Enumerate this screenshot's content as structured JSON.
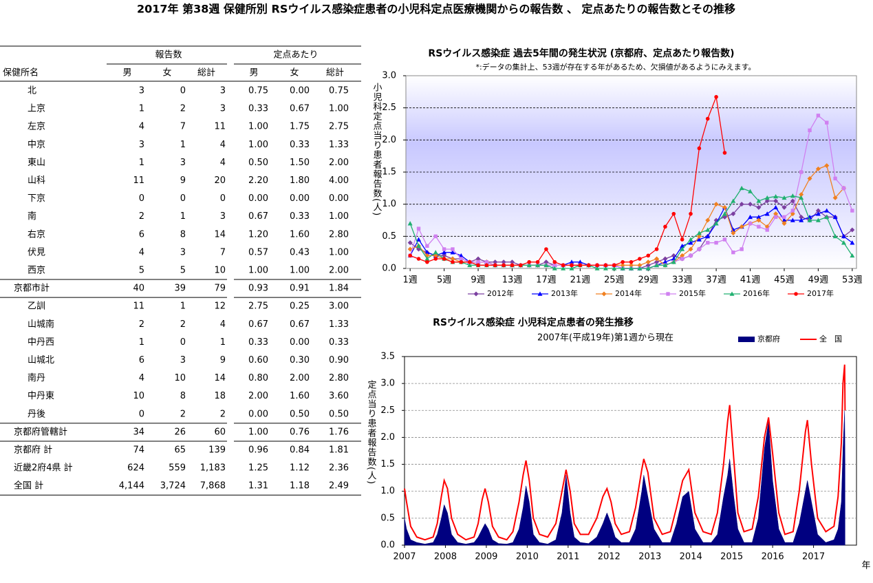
{
  "title": "2017年 第38週 保健所別 RSウイルス感染症患者の小児科定点医療機関からの報告数 、 定点あたりの報告数とその推移",
  "table": {
    "group_headers": [
      "報告数",
      "定点あたり"
    ],
    "headers": [
      "保健所名",
      "男",
      "女",
      "総計",
      "男",
      "女",
      "総計"
    ],
    "rows": [
      [
        "北",
        "3",
        "0",
        "3",
        "0.75",
        "0.00",
        "0.75"
      ],
      [
        "上京",
        "1",
        "2",
        "3",
        "0.33",
        "0.67",
        "1.00"
      ],
      [
        "左京",
        "4",
        "7",
        "11",
        "1.00",
        "1.75",
        "2.75"
      ],
      [
        "中京",
        "3",
        "1",
        "4",
        "1.00",
        "0.33",
        "1.33"
      ],
      [
        "東山",
        "1",
        "3",
        "4",
        "0.50",
        "1.50",
        "2.00"
      ],
      [
        "山科",
        "11",
        "9",
        "20",
        "2.20",
        "1.80",
        "4.00"
      ],
      [
        "下京",
        "0",
        "0",
        "0",
        "0.00",
        "0.00",
        "0.00"
      ],
      [
        "南",
        "2",
        "1",
        "3",
        "0.67",
        "0.33",
        "1.00"
      ],
      [
        "右京",
        "6",
        "8",
        "14",
        "1.20",
        "1.60",
        "2.80"
      ],
      [
        "伏見",
        "4",
        "3",
        "7",
        "0.57",
        "0.43",
        "1.00"
      ],
      [
        "西京",
        "5",
        "5",
        "10",
        "1.00",
        "1.00",
        "2.00"
      ],
      [
        "京都市計",
        "40",
        "39",
        "79",
        "0.93",
        "0.91",
        "1.84"
      ],
      [
        "乙訓",
        "11",
        "1",
        "12",
        "2.75",
        "0.25",
        "3.00"
      ],
      [
        "山城南",
        "2",
        "2",
        "4",
        "0.67",
        "0.67",
        "1.33"
      ],
      [
        "中丹西",
        "1",
        "0",
        "1",
        "0.33",
        "0.00",
        "0.33"
      ],
      [
        "山城北",
        "6",
        "3",
        "9",
        "0.60",
        "0.30",
        "0.90"
      ],
      [
        "南丹",
        "4",
        "10",
        "14",
        "0.80",
        "2.00",
        "2.80"
      ],
      [
        "中丹東",
        "10",
        "8",
        "18",
        "2.00",
        "1.60",
        "3.60"
      ],
      [
        "丹後",
        "0",
        "2",
        "2",
        "0.00",
        "0.50",
        "0.50"
      ],
      [
        "京都府管轄計",
        "34",
        "26",
        "60",
        "1.00",
        "0.76",
        "1.76"
      ],
      [
        "京都府 計",
        "74",
        "65",
        "139",
        "0.96",
        "0.84",
        "1.81"
      ],
      [
        "近畿2府4県 計",
        "624",
        "559",
        "1,183",
        "1.25",
        "1.12",
        "2.36"
      ],
      [
        "全国 計",
        "4,144",
        "3,724",
        "7,868",
        "1.31",
        "1.18",
        "2.49"
      ]
    ]
  },
  "chart_data": [
    {
      "type": "line",
      "title": "RSウイルス感染症 過去5年間の発生状況 (京都府、定点あたり報告数)",
      "note": "*:データの集計上、53週が存在する年があるため、欠損値があるようにみえます。",
      "y_label": "小児科定点当り患者報告数(人)",
      "x": [
        1,
        2,
        3,
        4,
        5,
        6,
        7,
        8,
        9,
        10,
        11,
        12,
        13,
        14,
        15,
        16,
        17,
        18,
        19,
        20,
        21,
        22,
        23,
        24,
        25,
        26,
        27,
        28,
        29,
        30,
        31,
        32,
        33,
        34,
        35,
        36,
        37,
        38,
        39,
        40,
        41,
        42,
        43,
        44,
        45,
        46,
        47,
        48,
        49,
        50,
        51,
        52,
        53
      ],
      "xlim": [
        0.5,
        53.5
      ],
      "xticks": [
        {
          "value": 1,
          "label": "1週"
        },
        {
          "value": 5,
          "label": "5週"
        },
        {
          "value": 9,
          "label": "9週"
        },
        {
          "value": 13,
          "label": "13週"
        },
        {
          "value": 17,
          "label": "17週"
        },
        {
          "value": 21,
          "label": "21週"
        },
        {
          "value": 25,
          "label": "25週"
        },
        {
          "value": 29,
          "label": "29週"
        },
        {
          "value": 33,
          "label": "33週"
        },
        {
          "value": 37,
          "label": "37週"
        },
        {
          "value": 41,
          "label": "41週"
        },
        {
          "value": 45,
          "label": "45週"
        },
        {
          "value": 49,
          "label": "49週"
        },
        {
          "value": 53,
          "label": "53週"
        }
      ],
      "ylim": [
        0,
        3
      ],
      "yticks": [
        {
          "value": 0,
          "label": "0.0"
        },
        {
          "value": 0.5,
          "label": "0.5"
        },
        {
          "value": 1,
          "label": "1.0"
        },
        {
          "value": 1.5,
          "label": "1.5"
        },
        {
          "value": 2,
          "label": "2.0"
        },
        {
          "value": 2.5,
          "label": "2.5"
        },
        {
          "value": 3,
          "label": "3.0"
        }
      ],
      "grid": true,
      "series": [
        {
          "name": "2012年",
          "color": "#7b3fa0",
          "marker": "diamond",
          "values": [
            0.4,
            0.3,
            0.25,
            0.2,
            0.2,
            0.15,
            0.15,
            0.1,
            0.15,
            0.1,
            0.1,
            0.1,
            0.1,
            0.05,
            0.05,
            0.05,
            0.1,
            0.05,
            0.05,
            0.05,
            0.05,
            0.05,
            0.05,
            0.05,
            0.05,
            0,
            0,
            0,
            0.05,
            0.1,
            0.15,
            0.2,
            0.15,
            0.2,
            0.3,
            0.5,
            0.75,
            0.8,
            0.85,
            1.0,
            1.0,
            0.95,
            1.05,
            1.05,
            0.95,
            1.05,
            0.8,
            0.75,
            0.9,
            0.8,
            0.8,
            0.5,
            0.6
          ]
        },
        {
          "name": "2013年",
          "color": "#0000ff",
          "marker": "triangle",
          "values": [
            0.2,
            0.45,
            0.25,
            0.2,
            0.25,
            0.25,
            0.2,
            0.1,
            0.1,
            0.1,
            0.05,
            0.05,
            0.05,
            0.05,
            0.05,
            0.05,
            0.05,
            0.05,
            0.05,
            0.1,
            0.1,
            0.05,
            0.05,
            0.05,
            0.05,
            0,
            0,
            0,
            0,
            0.05,
            0.1,
            0.15,
            0.35,
            0.4,
            0.45,
            0.5,
            0.7,
            0.95,
            0.6,
            0.65,
            0.8,
            0.8,
            0.85,
            0.95,
            0.75,
            0.75,
            0.75,
            0.8,
            0.85,
            0.9,
            0.8,
            0.5,
            0.4
          ]
        },
        {
          "name": "2014年",
          "color": "#f08020",
          "marker": "diamond",
          "values": [
            0.3,
            0.35,
            0.2,
            0.2,
            0.15,
            0.15,
            0.1,
            0.1,
            0.1,
            0.1,
            0.05,
            0.05,
            0.05,
            0.05,
            0.05,
            0.05,
            0.05,
            0.05,
            0.05,
            0.05,
            0.05,
            0.05,
            0.05,
            0.05,
            0.05,
            0.05,
            0.05,
            0.05,
            0.1,
            0.15,
            0.05,
            0.1,
            0.2,
            0.3,
            0.5,
            0.75,
            1.0,
            0.95,
            0.55,
            0.65,
            0.7,
            0.75,
            0.65,
            0.85,
            0.7,
            0.85,
            1.15,
            1.4,
            1.55,
            1.6,
            1.1,
            1.25,
            null
          ]
        },
        {
          "name": "2015年",
          "color": "#d080f0",
          "marker": "square",
          "values": [
            0.2,
            0.62,
            0.35,
            0.5,
            0.3,
            0.3,
            0.15,
            0.1,
            0.1,
            0.1,
            0.05,
            0.05,
            0.05,
            0.05,
            0.05,
            0.05,
            0.05,
            0.05,
            0.05,
            0.05,
            0.05,
            0.05,
            0.05,
            0.05,
            0.05,
            0,
            0,
            0,
            0,
            0.05,
            0.05,
            0.1,
            0.15,
            0.2,
            0.3,
            0.4,
            0.4,
            0.45,
            0.25,
            0.3,
            0.7,
            0.65,
            0.6,
            0.8,
            0.8,
            0.9,
            1.5,
            2.15,
            2.38,
            2.27,
            1.4,
            1.25,
            0.9
          ]
        },
        {
          "name": "2016年",
          "color": "#20b070",
          "marker": "triangle",
          "values": [
            0.7,
            0.35,
            0.15,
            0.25,
            0.15,
            0.1,
            0.1,
            0.05,
            0.05,
            0.05,
            0.05,
            0.05,
            0.05,
            0.05,
            0.05,
            0.05,
            0.05,
            0,
            0,
            0,
            0.05,
            0.05,
            0,
            0,
            0,
            0,
            0,
            0,
            0,
            0.05,
            0.05,
            0.1,
            0.3,
            0.45,
            0.55,
            0.6,
            0.7,
            0.85,
            1.05,
            1.25,
            1.2,
            1.05,
            1.1,
            1.12,
            1.1,
            1.13,
            1.1,
            0.75,
            0.75,
            0.8,
            0.5,
            0.4,
            0.2
          ]
        },
        {
          "name": "2017年",
          "color": "#ff0000",
          "marker": "circle",
          "values": [
            0.2,
            0.15,
            0.1,
            0.15,
            0.15,
            0.1,
            0.1,
            0.1,
            0.05,
            0.05,
            0.05,
            0.05,
            0.05,
            0.05,
            0.1,
            0.1,
            0.3,
            0.1,
            0.05,
            0.05,
            0.05,
            0.05,
            0.05,
            0.05,
            0.05,
            0.1,
            0.1,
            0.15,
            0.2,
            0.3,
            0.65,
            0.85,
            0.45,
            0.85,
            1.87,
            2.33,
            2.67,
            1.8,
            null,
            null,
            null,
            null,
            null,
            null,
            null,
            null,
            null,
            null,
            null,
            null,
            null,
            null,
            null
          ]
        }
      ]
    },
    {
      "type": "line",
      "title": "RSウイルス感染症 小児科定点患者の発生推移",
      "subtitle": "2007年(平成19年)第1週から現在",
      "y_label": "定点当り患者報告数(人)",
      "x_label": "年",
      "x": [
        2007.0,
        2007.05,
        2007.15,
        2007.3,
        2007.5,
        2007.7,
        2007.8,
        2007.9,
        2007.97,
        2008.05,
        2008.15,
        2008.3,
        2008.5,
        2008.7,
        2008.8,
        2008.9,
        2008.97,
        2009.05,
        2009.15,
        2009.3,
        2009.5,
        2009.65,
        2009.8,
        2009.9,
        2009.97,
        2010.05,
        2010.15,
        2010.3,
        2010.5,
        2010.7,
        2010.85,
        2010.95,
        2011.05,
        2011.15,
        2011.3,
        2011.5,
        2011.7,
        2011.85,
        2011.95,
        2012.05,
        2012.15,
        2012.3,
        2012.5,
        2012.65,
        2012.8,
        2012.85,
        2012.95,
        2013.1,
        2013.3,
        2013.5,
        2013.65,
        2013.8,
        2013.95,
        2014.1,
        2014.3,
        2014.5,
        2014.65,
        2014.8,
        2014.9,
        2014.95,
        2015.05,
        2015.15,
        2015.3,
        2015.5,
        2015.65,
        2015.8,
        2015.9,
        2016.0,
        2016.15,
        2016.3,
        2016.5,
        2016.65,
        2016.8,
        2016.85,
        2016.95,
        2017.1,
        2017.3,
        2017.5,
        2017.6,
        2017.68,
        2017.72,
        2017.76,
        2017.77
      ],
      "xlim": [
        2007,
        2018.05
      ],
      "xticks": [
        2007,
        2008,
        2009,
        2010,
        2011,
        2012,
        2013,
        2014,
        2015,
        2016,
        2017
      ],
      "ylim": [
        0,
        3.5
      ],
      "yticks": [
        {
          "value": 0,
          "label": "0.0"
        },
        {
          "value": 0.5,
          "label": "0.5"
        },
        {
          "value": 1,
          "label": "1.0"
        },
        {
          "value": 1.5,
          "label": "1.5"
        },
        {
          "value": 2,
          "label": "2.0"
        },
        {
          "value": 2.5,
          "label": "2.5"
        },
        {
          "value": 3,
          "label": "3.0"
        },
        {
          "value": 3.5,
          "label": "3.5"
        }
      ],
      "grid": true,
      "series": [
        {
          "name": "京都府",
          "color": "#000080",
          "style": "area",
          "values": [
            0.5,
            0.3,
            0.1,
            0.05,
            0.02,
            0.05,
            0.2,
            0.5,
            0.75,
            0.6,
            0.2,
            0.05,
            0.02,
            0.05,
            0.15,
            0.3,
            0.4,
            0.3,
            0.1,
            0.03,
            0.02,
            0.05,
            0.3,
            0.7,
            1.1,
            0.8,
            0.2,
            0.05,
            0.02,
            0.1,
            0.6,
            1.3,
            0.6,
            0.15,
            0.05,
            0.03,
            0.15,
            0.4,
            0.6,
            0.4,
            0.15,
            0.05,
            0.05,
            0.3,
            1.0,
            1.3,
            0.9,
            0.3,
            0.05,
            0.05,
            0.4,
            0.9,
            1.0,
            0.3,
            0.05,
            0.05,
            0.2,
            0.9,
            1.3,
            1.6,
            0.9,
            0.3,
            0.05,
            0.05,
            0.5,
            1.8,
            2.3,
            1.2,
            0.3,
            0.05,
            0.05,
            0.4,
            1.0,
            1.2,
            0.8,
            0.2,
            0.05,
            0.1,
            0.3,
            0.8,
            1.8,
            2.5,
            1.6
          ]
        },
        {
          "name": "全　国",
          "color": "#ff0000",
          "style": "line",
          "values": [
            1.05,
            0.8,
            0.35,
            0.15,
            0.1,
            0.15,
            0.4,
            0.9,
            1.2,
            1.05,
            0.5,
            0.2,
            0.1,
            0.15,
            0.4,
            0.85,
            1.05,
            0.8,
            0.35,
            0.15,
            0.1,
            0.25,
            0.8,
            1.3,
            1.57,
            1.2,
            0.5,
            0.2,
            0.15,
            0.4,
            1.0,
            1.4,
            1.0,
            0.4,
            0.2,
            0.2,
            0.5,
            0.9,
            1.05,
            0.8,
            0.4,
            0.2,
            0.25,
            0.7,
            1.4,
            1.6,
            1.35,
            0.5,
            0.2,
            0.25,
            0.7,
            1.2,
            1.4,
            0.6,
            0.25,
            0.2,
            0.6,
            1.5,
            2.3,
            2.6,
            1.6,
            0.6,
            0.25,
            0.3,
            0.9,
            2.0,
            2.37,
            1.7,
            0.6,
            0.2,
            0.25,
            1.0,
            2.1,
            2.32,
            1.5,
            0.5,
            0.25,
            0.35,
            0.9,
            1.9,
            3.0,
            3.35,
            2.5
          ]
        }
      ]
    }
  ]
}
